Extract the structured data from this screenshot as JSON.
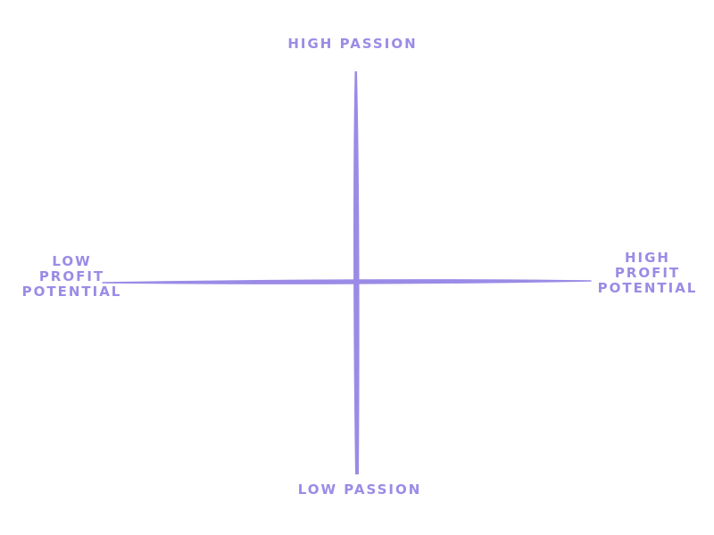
{
  "axes": {
    "vertical": {
      "top_label": "HIGH PASSION",
      "bottom_label": "LOW PASSION"
    },
    "horizontal": {
      "left_label": [
        "LOW",
        "PROFIT",
        "POTENTIAL"
      ],
      "right_label": [
        "HIGH",
        "PROFIT",
        "POTENTIAL"
      ]
    }
  },
  "style": {
    "line_color": "#9b8be6",
    "text_color": "#9b8be6"
  }
}
